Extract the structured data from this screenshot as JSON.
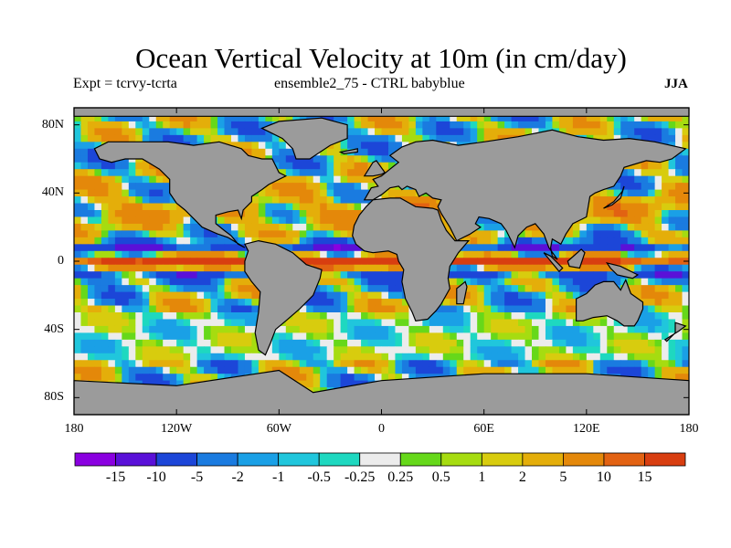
{
  "header": {
    "title": "Ocean Vertical Velocity at 10m (in cm/day)",
    "experiment": "Expt = tcrvy-tcrta",
    "ensemble": "ensemble2_75 - CTRL babyblue",
    "season": "JJA"
  },
  "map": {
    "projection": "cylindrical equidistant",
    "lon_range": [
      -180,
      180
    ],
    "lat_range": [
      -90,
      90
    ],
    "land_color": "#9b9b9b",
    "coastline_color": "#000000",
    "lat_ticks": [
      {
        "value": 80,
        "label": "80N"
      },
      {
        "value": 40,
        "label": "40N"
      },
      {
        "value": 0,
        "label": "0"
      },
      {
        "value": -40,
        "label": "40S"
      },
      {
        "value": -80,
        "label": "80S"
      }
    ],
    "lon_ticks": [
      {
        "value": -180,
        "label": "180"
      },
      {
        "value": -120,
        "label": "120W"
      },
      {
        "value": -60,
        "label": "60W"
      },
      {
        "value": 0,
        "label": "0"
      },
      {
        "value": 60,
        "label": "60E"
      },
      {
        "value": 120,
        "label": "120E"
      },
      {
        "value": 180,
        "label": "180"
      }
    ]
  },
  "colorbar": {
    "colors": [
      "#8a00e0",
      "#5a10d8",
      "#1c46d8",
      "#1a7be0",
      "#1aa0e6",
      "#20c6dc",
      "#1ed8c0",
      "#ececec",
      "#66d81a",
      "#a6dc10",
      "#d8cc0e",
      "#e4ae0a",
      "#e4880a",
      "#e26212",
      "#d83e10"
    ],
    "labels": [
      "-15",
      "-10",
      "-5",
      "-2",
      "-1",
      "-0.5",
      "-0.25",
      "0.25",
      "0.5",
      "1",
      "2",
      "5",
      "10",
      "15"
    ]
  }
}
